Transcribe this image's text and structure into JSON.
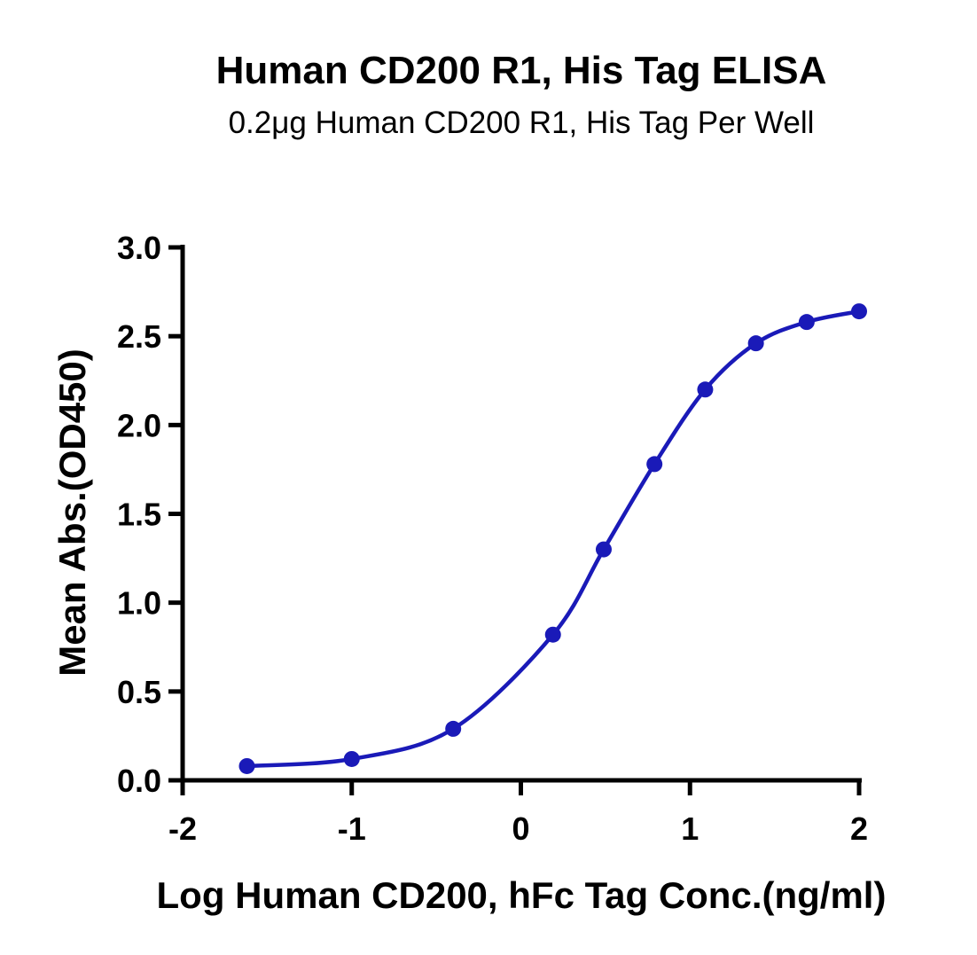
{
  "chart_data": {
    "type": "line",
    "title": "Human CD200 R1, His Tag ELISA",
    "subtitle": "0.2μg Human CD200 R1, His Tag Per Well",
    "xlabel": "Log Human CD200, hFc Tag Conc.(ng/ml)",
    "ylabel": "Mean Abs.(OD450)",
    "xlim": [
      -2,
      2
    ],
    "ylim": [
      0,
      3
    ],
    "x_ticks": [
      -2,
      -1,
      0,
      1,
      2
    ],
    "x_tick_labels": [
      "-2",
      "-1",
      "0",
      "1",
      "2"
    ],
    "y_ticks": [
      0,
      0.5,
      1,
      1.5,
      2,
      2.5,
      3
    ],
    "y_tick_labels": [
      "0.0",
      "0.5",
      "1.0",
      "1.5",
      "2.0",
      "2.5",
      "3.0"
    ],
    "grid": false,
    "legend": "none",
    "series": [
      {
        "color": "#1a1ab8",
        "points": [
          {
            "x": -1.62,
            "y": 0.08
          },
          {
            "x": -1.0,
            "y": 0.12
          },
          {
            "x": -0.4,
            "y": 0.29
          },
          {
            "x": 0.19,
            "y": 0.82
          },
          {
            "x": 0.49,
            "y": 1.3
          },
          {
            "x": 0.79,
            "y": 1.78
          },
          {
            "x": 1.09,
            "y": 2.2
          },
          {
            "x": 1.39,
            "y": 2.46
          },
          {
            "x": 1.69,
            "y": 2.58
          },
          {
            "x": 2.0,
            "y": 2.64
          }
        ]
      }
    ]
  }
}
